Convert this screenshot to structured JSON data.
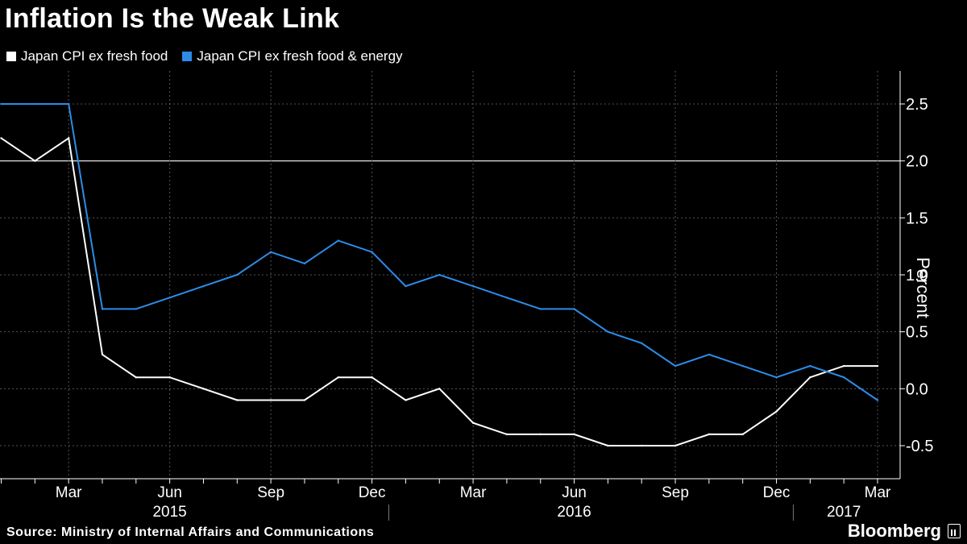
{
  "title": "Inflation Is the Weak Link",
  "legend": [
    {
      "label": "Japan CPI ex fresh food",
      "color": "#ffffff"
    },
    {
      "label": "Japan CPI ex fresh food & energy",
      "color": "#2d8ce8"
    }
  ],
  "source": "Source: Ministry of Internal Affairs and Communications",
  "brand": "Bloomberg",
  "chart_data": {
    "type": "line",
    "title": "Inflation Is the Weak Link",
    "ylabel": "Percent",
    "x": [
      "2015-01",
      "2015-02",
      "2015-03",
      "2015-04",
      "2015-05",
      "2015-06",
      "2015-07",
      "2015-08",
      "2015-09",
      "2015-10",
      "2015-11",
      "2015-12",
      "2016-01",
      "2016-02",
      "2016-03",
      "2016-04",
      "2016-05",
      "2016-06",
      "2016-07",
      "2016-08",
      "2016-09",
      "2016-10",
      "2016-11",
      "2016-12",
      "2017-01",
      "2017-02",
      "2017-03"
    ],
    "series": [
      {
        "name": "Japan CPI ex fresh food",
        "color": "#ffffff",
        "values": [
          2.2,
          2.0,
          2.2,
          0.3,
          0.1,
          0.1,
          0.0,
          -0.1,
          -0.1,
          -0.1,
          0.1,
          0.1,
          -0.1,
          0.0,
          -0.3,
          -0.4,
          -0.4,
          -0.4,
          -0.5,
          -0.5,
          -0.5,
          -0.4,
          -0.4,
          -0.2,
          0.1,
          0.2,
          0.2
        ]
      },
      {
        "name": "Japan CPI ex fresh food & energy",
        "color": "#2d8ce8",
        "values": [
          2.5,
          2.5,
          2.5,
          0.7,
          0.7,
          0.8,
          0.9,
          1.0,
          1.2,
          1.1,
          1.3,
          1.2,
          0.9,
          1.0,
          0.9,
          0.8,
          0.7,
          0.7,
          0.5,
          0.4,
          0.2,
          0.3,
          0.2,
          0.1,
          0.2,
          0.1,
          -0.1
        ]
      }
    ],
    "ylim": [
      -0.8,
      2.8
    ],
    "yticks": [
      2.5,
      2.0,
      1.5,
      1.0,
      0.5,
      0.0,
      -0.5
    ],
    "ytick_labels": [
      "2.5",
      "2.0",
      "1.5",
      "1.0",
      "0.5",
      "0.0",
      "-0.5"
    ],
    "reference_line": 2.0,
    "xticks": [
      {
        "label": "Mar",
        "x": "2015-03"
      },
      {
        "label": "Jun",
        "x": "2015-06"
      },
      {
        "label": "Sep",
        "x": "2015-09"
      },
      {
        "label": "Dec",
        "x": "2015-12"
      },
      {
        "label": "Mar",
        "x": "2016-03"
      },
      {
        "label": "Jun",
        "x": "2016-06"
      },
      {
        "label": "Sep",
        "x": "2016-09"
      },
      {
        "label": "Dec",
        "x": "2016-12"
      },
      {
        "label": "Mar",
        "x": "2017-03"
      }
    ],
    "years": [
      {
        "label": "2015",
        "x": "2015-06"
      },
      {
        "label": "2016",
        "x": "2016-06"
      },
      {
        "label": "2017",
        "x": "2017-02"
      }
    ],
    "grid": true,
    "legend_position": "top-left"
  }
}
